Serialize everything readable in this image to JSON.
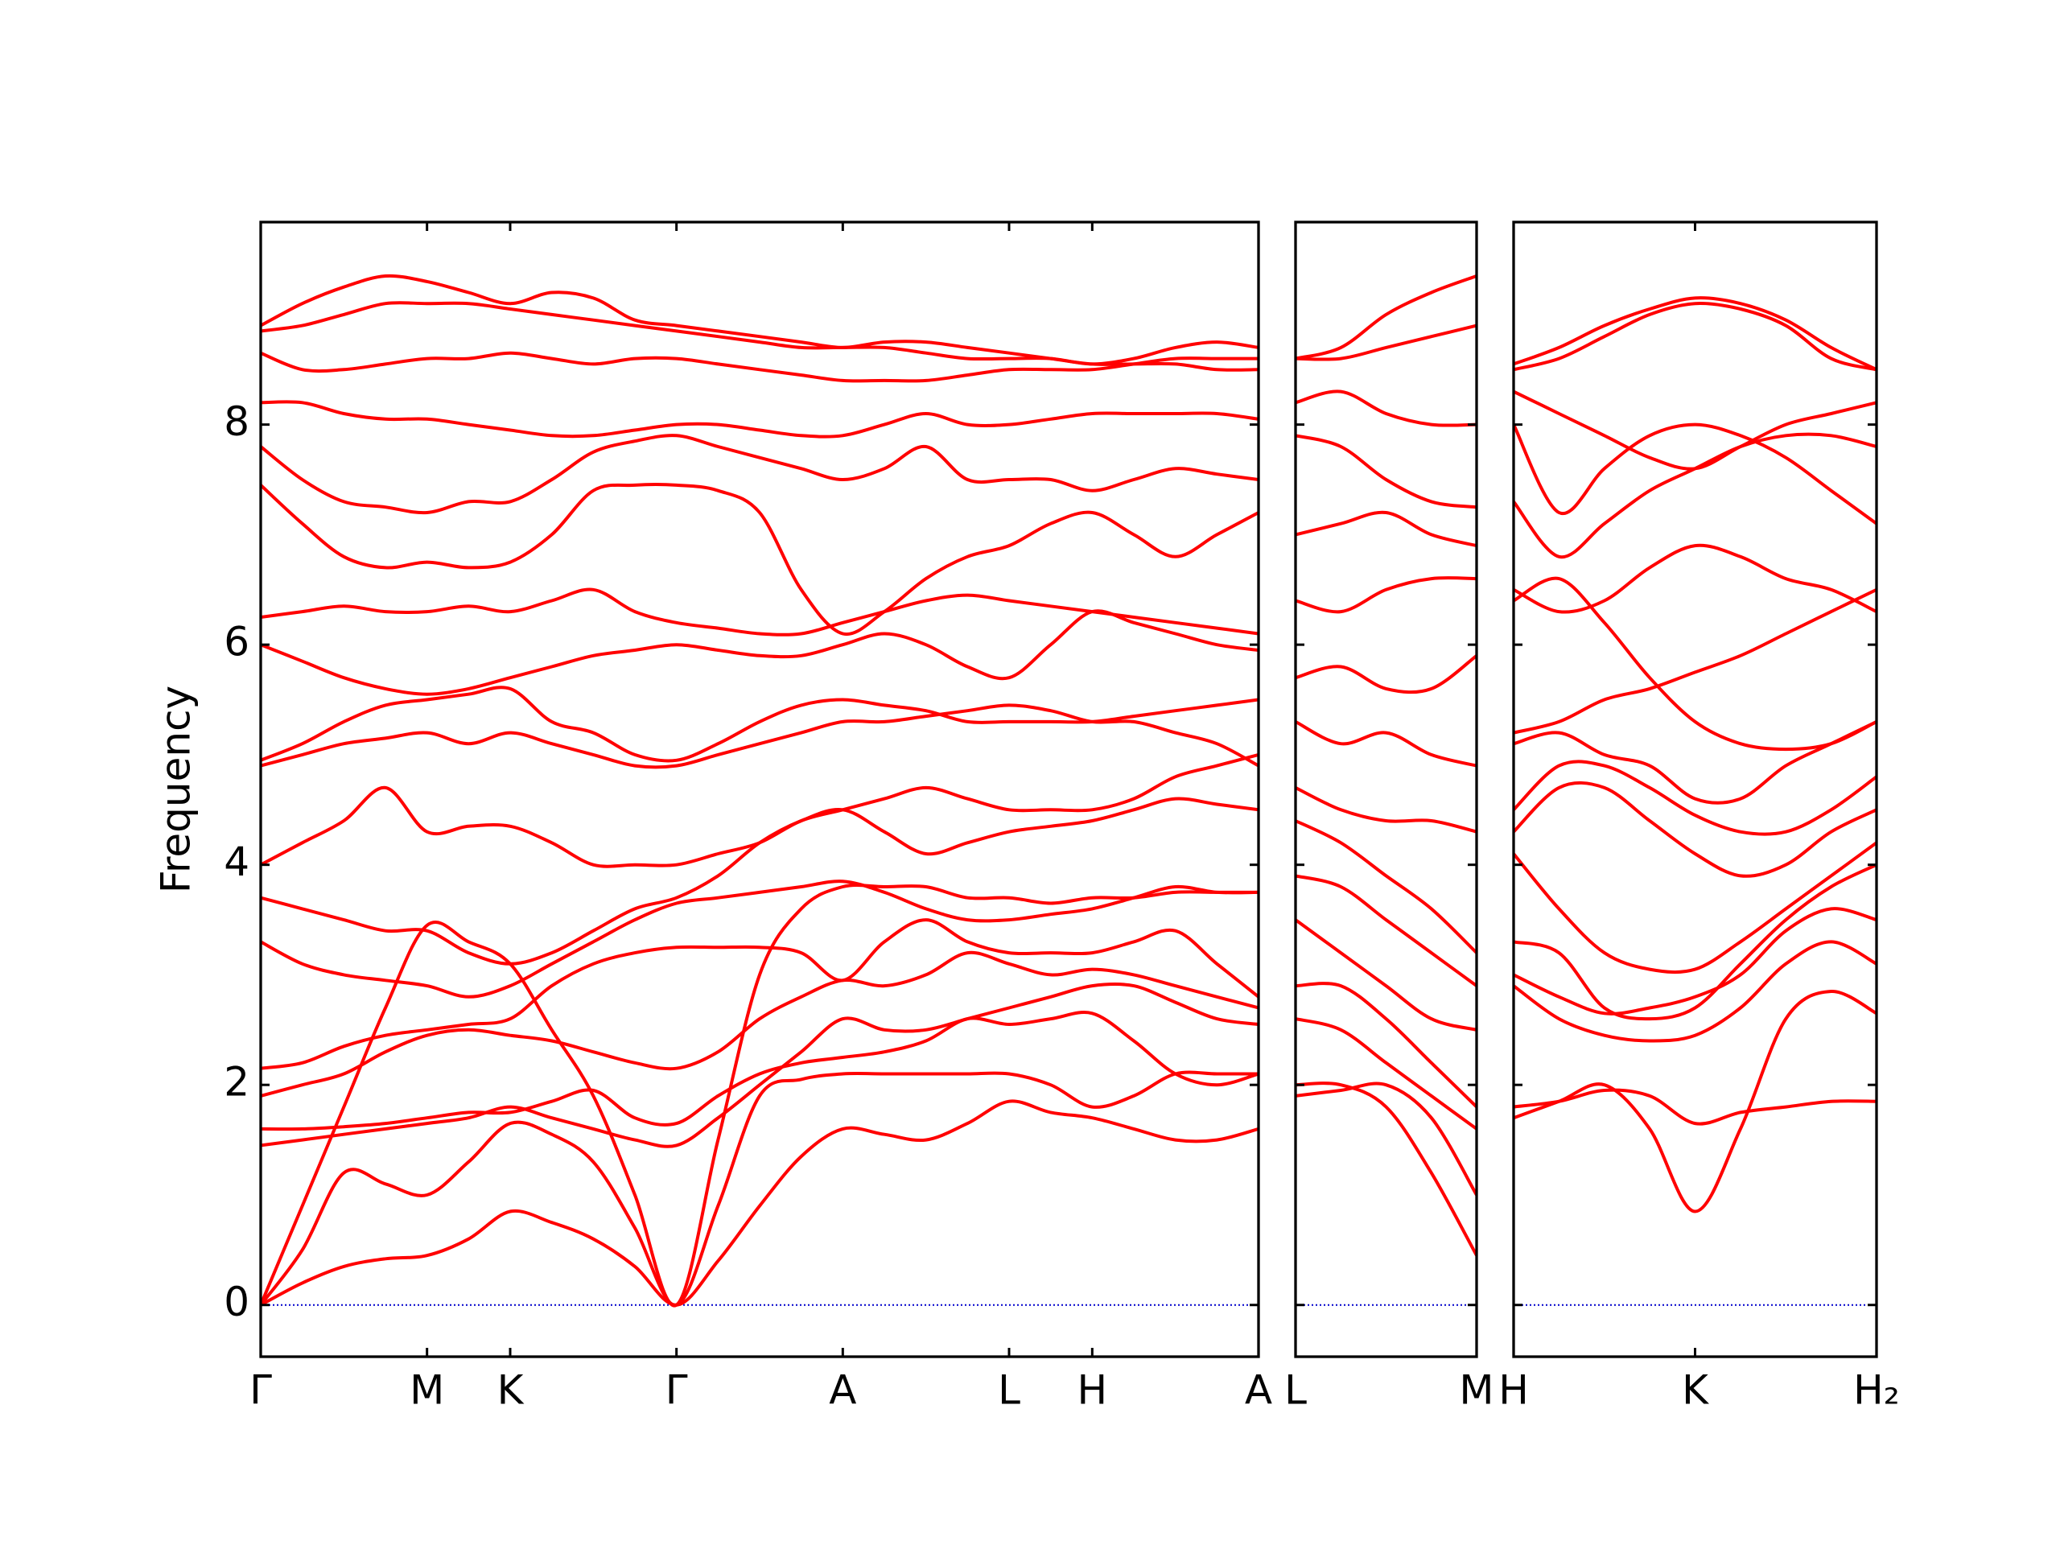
{
  "chart_data": [
    {
      "type": "line",
      "ylabel": "Frequency",
      "color": "#ff0000",
      "hline": 0,
      "hline_color": "#0000cc",
      "categories": [
        "Γ",
        null,
        null,
        null,
        "M",
        null,
        "K",
        null,
        null,
        null,
        "Γ",
        null,
        null,
        null,
        "A",
        null,
        null,
        null,
        "L",
        null,
        "H",
        null,
        null,
        null,
        "A"
      ],
      "ylim": [
        -0.47,
        9.84
      ],
      "yticks": [
        0,
        2,
        4,
        6,
        8
      ],
      "show_ytick_labels": true,
      "series": [
        {
          "values": [
            0,
            0.2,
            0.35,
            0.42,
            0.45,
            0.6,
            0.85,
            0.75,
            0.6,
            0.35,
            0,
            0.4,
            0.9,
            1.35,
            1.6,
            1.55,
            1.5,
            1.65,
            1.85,
            1.75,
            1.7,
            1.6,
            1.5,
            1.5,
            1.6
          ]
        },
        {
          "values": [
            0,
            0.5,
            1.2,
            1.1,
            1.0,
            1.3,
            1.65,
            1.55,
            1.3,
            0.7,
            0,
            0.9,
            1.9,
            2.05,
            2.1,
            2.1,
            2.1,
            2.1,
            2.1,
            2.0,
            1.8,
            1.9,
            2.1,
            2.1,
            2.1
          ]
        },
        {
          "values": [
            0,
            0.9,
            1.8,
            2.7,
            3.45,
            3.3,
            3.1,
            2.5,
            1.9,
            1.0,
            0,
            1.5,
            3.0,
            3.6,
            3.8,
            3.8,
            3.8,
            3.7,
            3.7,
            3.65,
            3.7,
            3.7,
            3.75,
            3.75,
            3.75
          ]
        },
        {
          "values": [
            1.45,
            1.5,
            1.55,
            1.6,
            1.65,
            1.7,
            1.8,
            1.7,
            1.6,
            1.5,
            1.45,
            1.7,
            2.0,
            2.3,
            2.6,
            2.5,
            2.5,
            2.6,
            2.7,
            2.8,
            2.9,
            2.9,
            2.75,
            2.6,
            2.55
          ]
        },
        {
          "values": [
            1.6,
            1.6,
            1.62,
            1.65,
            1.7,
            1.75,
            1.75,
            1.85,
            1.95,
            1.7,
            1.65,
            1.9,
            2.1,
            2.2,
            2.25,
            2.3,
            2.4,
            2.6,
            2.55,
            2.6,
            2.65,
            2.4,
            2.1,
            2.0,
            2.1
          ]
        },
        {
          "values": [
            1.9,
            2.0,
            2.1,
            2.3,
            2.45,
            2.5,
            2.45,
            2.4,
            2.3,
            2.2,
            2.15,
            2.3,
            2.6,
            2.8,
            2.95,
            2.9,
            3.0,
            3.2,
            3.1,
            3.0,
            3.05,
            3.0,
            2.9,
            2.8,
            2.7
          ]
        },
        {
          "values": [
            2.15,
            2.2,
            2.35,
            2.45,
            2.5,
            2.55,
            2.6,
            2.9,
            3.1,
            3.2,
            3.25,
            3.25,
            3.25,
            3.2,
            2.95,
            3.3,
            3.5,
            3.3,
            3.2,
            3.2,
            3.2,
            3.3,
            3.4,
            3.1,
            2.8
          ]
        },
        {
          "values": [
            3.3,
            3.1,
            3.0,
            2.95,
            2.9,
            2.8,
            2.9,
            3.1,
            3.3,
            3.5,
            3.65,
            3.7,
            3.75,
            3.8,
            3.85,
            3.75,
            3.6,
            3.5,
            3.5,
            3.55,
            3.6,
            3.7,
            3.8,
            3.75,
            3.75
          ]
        },
        {
          "values": [
            3.7,
            3.6,
            3.5,
            3.4,
            3.4,
            3.2,
            3.1,
            3.2,
            3.4,
            3.6,
            3.7,
            3.9,
            4.2,
            4.4,
            4.5,
            4.3,
            4.1,
            4.2,
            4.3,
            4.35,
            4.4,
            4.5,
            4.6,
            4.55,
            4.5
          ]
        },
        {
          "values": [
            4.0,
            4.2,
            4.4,
            4.7,
            4.3,
            4.35,
            4.35,
            4.2,
            4.0,
            4.0,
            4.0,
            4.1,
            4.2,
            4.4,
            4.5,
            4.6,
            4.7,
            4.6,
            4.5,
            4.5,
            4.5,
            4.6,
            4.8,
            4.9,
            5.0
          ]
        },
        {
          "values": [
            4.9,
            5.0,
            5.1,
            5.15,
            5.2,
            5.1,
            5.2,
            5.1,
            5.0,
            4.9,
            4.9,
            5.0,
            5.1,
            5.2,
            5.3,
            5.3,
            5.35,
            5.4,
            5.45,
            5.4,
            5.3,
            5.3,
            5.2,
            5.1,
            4.9
          ]
        },
        {
          "values": [
            4.95,
            5.1,
            5.3,
            5.45,
            5.5,
            5.55,
            5.6,
            5.3,
            5.2,
            5.0,
            4.95,
            5.1,
            5.3,
            5.45,
            5.5,
            5.45,
            5.4,
            5.3,
            5.3,
            5.3,
            5.3,
            5.35,
            5.4,
            5.45,
            5.5
          ]
        },
        {
          "values": [
            6.0,
            5.85,
            5.7,
            5.6,
            5.55,
            5.6,
            5.7,
            5.8,
            5.9,
            5.95,
            6.0,
            5.95,
            5.9,
            5.9,
            6.0,
            6.1,
            6.0,
            5.8,
            5.7,
            6.0,
            6.3,
            6.2,
            6.1,
            6.0,
            5.95
          ]
        },
        {
          "values": [
            6.25,
            6.3,
            6.35,
            6.3,
            6.3,
            6.35,
            6.3,
            6.4,
            6.5,
            6.3,
            6.2,
            6.15,
            6.1,
            6.1,
            6.2,
            6.3,
            6.4,
            6.45,
            6.4,
            6.35,
            6.3,
            6.25,
            6.2,
            6.15,
            6.1
          ]
        },
        {
          "values": [
            7.45,
            7.1,
            6.8,
            6.7,
            6.75,
            6.7,
            6.75,
            7.0,
            7.4,
            7.45,
            7.45,
            7.4,
            7.2,
            6.5,
            6.1,
            6.3,
            6.6,
            6.8,
            6.9,
            7.1,
            7.2,
            7.0,
            6.8,
            7.0,
            7.2
          ]
        },
        {
          "values": [
            7.8,
            7.5,
            7.3,
            7.25,
            7.2,
            7.3,
            7.3,
            7.5,
            7.75,
            7.85,
            7.9,
            7.8,
            7.7,
            7.6,
            7.5,
            7.6,
            7.8,
            7.5,
            7.5,
            7.5,
            7.4,
            7.5,
            7.6,
            7.55,
            7.5
          ]
        },
        {
          "values": [
            8.2,
            8.2,
            8.1,
            8.05,
            8.05,
            8.0,
            7.95,
            7.9,
            7.9,
            7.95,
            8.0,
            8.0,
            7.95,
            7.9,
            7.9,
            8.0,
            8.1,
            8.0,
            8.0,
            8.05,
            8.1,
            8.1,
            8.1,
            8.1,
            8.05
          ]
        },
        {
          "values": [
            8.65,
            8.5,
            8.5,
            8.55,
            8.6,
            8.6,
            8.65,
            8.6,
            8.55,
            8.6,
            8.6,
            8.55,
            8.5,
            8.45,
            8.4,
            8.4,
            8.4,
            8.45,
            8.5,
            8.5,
            8.5,
            8.55,
            8.6,
            8.6,
            8.6
          ]
        },
        {
          "values": [
            8.85,
            8.9,
            9.0,
            9.1,
            9.1,
            9.1,
            9.05,
            9.0,
            8.95,
            8.9,
            8.85,
            8.8,
            8.75,
            8.7,
            8.7,
            8.7,
            8.65,
            8.6,
            8.6,
            8.6,
            8.55,
            8.6,
            8.7,
            8.75,
            8.7
          ]
        },
        {
          "values": [
            8.9,
            9.1,
            9.25,
            9.35,
            9.3,
            9.2,
            9.1,
            9.2,
            9.15,
            8.95,
            8.9,
            8.85,
            8.8,
            8.75,
            8.7,
            8.75,
            8.75,
            8.7,
            8.65,
            8.6,
            8.55,
            8.55,
            8.55,
            8.5,
            8.5
          ]
        }
      ]
    },
    {
      "type": "line",
      "color": "#ff0000",
      "hline": 0,
      "hline_color": "#0000cc",
      "categories": [
        "L",
        null,
        null,
        null,
        "M"
      ],
      "ylim": [
        -0.47,
        9.84
      ],
      "yticks": [
        0,
        2,
        4,
        6,
        8
      ],
      "show_ytick_labels": false,
      "series": [
        {
          "values": [
            2.0,
            2.0,
            1.8,
            1.2,
            0.45
          ]
        },
        {
          "values": [
            1.9,
            1.95,
            2.0,
            1.7,
            1.0
          ]
        },
        {
          "values": [
            2.6,
            2.5,
            2.2,
            1.9,
            1.6
          ]
        },
        {
          "values": [
            2.9,
            2.9,
            2.6,
            2.2,
            1.8
          ]
        },
        {
          "values": [
            3.5,
            3.2,
            2.9,
            2.6,
            2.5
          ]
        },
        {
          "values": [
            3.9,
            3.8,
            3.5,
            3.2,
            2.9
          ]
        },
        {
          "values": [
            4.4,
            4.2,
            3.9,
            3.6,
            3.2
          ]
        },
        {
          "values": [
            4.7,
            4.5,
            4.4,
            4.4,
            4.3
          ]
        },
        {
          "values": [
            5.3,
            5.1,
            5.2,
            5.0,
            4.9
          ]
        },
        {
          "values": [
            5.7,
            5.8,
            5.6,
            5.6,
            5.9
          ]
        },
        {
          "values": [
            6.4,
            6.3,
            6.5,
            6.6,
            6.6
          ]
        },
        {
          "values": [
            7.0,
            7.1,
            7.2,
            7.0,
            6.9
          ]
        },
        {
          "values": [
            7.9,
            7.8,
            7.5,
            7.3,
            7.25
          ]
        },
        {
          "values": [
            8.2,
            8.3,
            8.1,
            8.0,
            8.0
          ]
        },
        {
          "values": [
            8.6,
            8.6,
            8.7,
            8.8,
            8.9
          ]
        },
        {
          "values": [
            8.6,
            8.7,
            9.0,
            9.2,
            9.35
          ]
        }
      ]
    },
    {
      "type": "line",
      "color": "#ff0000",
      "hline": 0,
      "hline_color": "#0000cc",
      "categories": [
        "H",
        null,
        null,
        null,
        "K",
        null,
        null,
        null,
        "H₂"
      ],
      "ylim": [
        -0.47,
        9.84
      ],
      "yticks": [
        0,
        2,
        4,
        6,
        8
      ],
      "show_ytick_labels": false,
      "series": [
        {
          "values": [
            1.8,
            1.85,
            1.95,
            1.9,
            1.65,
            1.75,
            1.8,
            1.85,
            1.85
          ]
        },
        {
          "values": [
            1.7,
            1.85,
            2.0,
            1.6,
            0.85,
            1.6,
            2.6,
            2.85,
            2.65
          ]
        },
        {
          "values": [
            2.9,
            2.6,
            2.45,
            2.4,
            2.45,
            2.7,
            3.1,
            3.3,
            3.1
          ]
        },
        {
          "values": [
            3.0,
            2.8,
            2.65,
            2.7,
            2.8,
            3.0,
            3.4,
            3.6,
            3.5
          ]
        },
        {
          "values": [
            3.3,
            3.2,
            2.7,
            2.6,
            2.7,
            3.1,
            3.5,
            3.8,
            4.0
          ]
        },
        {
          "values": [
            4.1,
            3.6,
            3.2,
            3.05,
            3.05,
            3.3,
            3.6,
            3.9,
            4.2
          ]
        },
        {
          "values": [
            4.3,
            4.7,
            4.7,
            4.4,
            4.1,
            3.9,
            4.0,
            4.3,
            4.5
          ]
        },
        {
          "values": [
            4.5,
            4.9,
            4.9,
            4.7,
            4.45,
            4.3,
            4.3,
            4.5,
            4.8
          ]
        },
        {
          "values": [
            5.1,
            5.2,
            5.0,
            4.9,
            4.6,
            4.6,
            4.9,
            5.1,
            5.3
          ]
        },
        {
          "values": [
            5.2,
            5.3,
            5.5,
            5.6,
            5.75,
            5.9,
            6.1,
            6.3,
            6.5
          ]
        },
        {
          "values": [
            6.4,
            6.6,
            6.2,
            5.7,
            5.3,
            5.1,
            5.05,
            5.1,
            5.3
          ]
        },
        {
          "values": [
            6.5,
            6.3,
            6.4,
            6.7,
            6.9,
            6.8,
            6.6,
            6.5,
            6.3
          ]
        },
        {
          "values": [
            7.3,
            6.8,
            7.1,
            7.4,
            7.6,
            7.8,
            7.9,
            7.9,
            7.8
          ]
        },
        {
          "values": [
            8.0,
            7.2,
            7.6,
            7.9,
            8.0,
            7.9,
            7.7,
            7.4,
            7.1
          ]
        },
        {
          "values": [
            8.3,
            8.1,
            7.9,
            7.7,
            7.6,
            7.8,
            8.0,
            8.1,
            8.2
          ]
        },
        {
          "values": [
            8.5,
            8.6,
            8.8,
            9.0,
            9.1,
            9.05,
            8.9,
            8.6,
            8.5
          ]
        },
        {
          "values": [
            8.55,
            8.7,
            8.9,
            9.05,
            9.15,
            9.1,
            8.95,
            8.7,
            8.5
          ]
        }
      ]
    }
  ]
}
